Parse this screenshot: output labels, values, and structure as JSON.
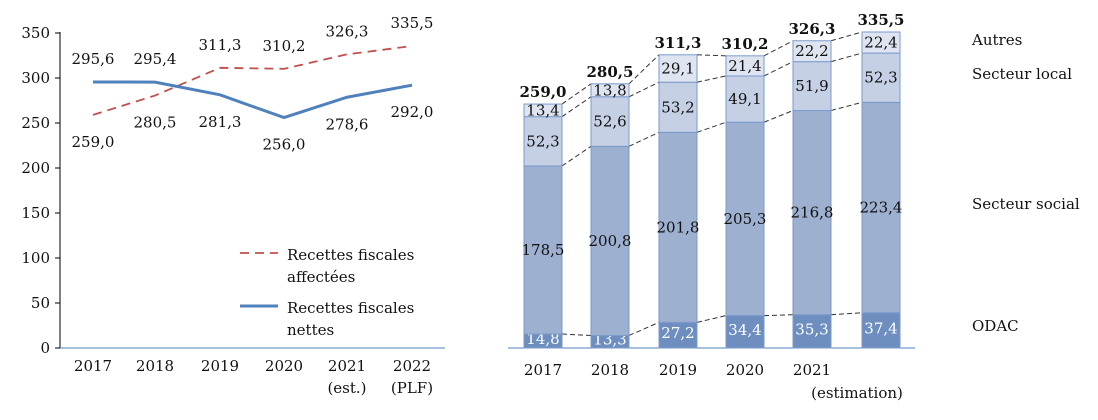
{
  "chart_data": [
    {
      "type": "line",
      "categories": [
        "2017",
        "2018",
        "2019",
        "2020",
        "2021",
        "2022"
      ],
      "category_sublabels": [
        "",
        "",
        "",
        "",
        "(est.)",
        "(PLF)"
      ],
      "ylim": [
        0,
        350
      ],
      "yticks": [
        0,
        50,
        100,
        150,
        200,
        250,
        300,
        350
      ],
      "series": [
        {
          "name": "Recettes fiscales affectées",
          "legend_line2": "affectées",
          "legend_line1": "Recettes fiscales",
          "style": "dashed",
          "color": "#c0504d",
          "values": [
            259.0,
            280.5,
            311.3,
            310.2,
            326.3,
            335.5
          ],
          "labels": [
            "259,0",
            "280,5",
            "311,3",
            "310,2",
            "326,3",
            "335,5"
          ]
        },
        {
          "name": "Recettes fiscales nettes",
          "legend_line1": "Recettes fiscales",
          "legend_line2": "nettes",
          "style": "solid",
          "color": "#4f81bd",
          "values": [
            295.6,
            295.4,
            281.3,
            256.0,
            278.6,
            292.0
          ],
          "labels": [
            "295,6",
            "295,4",
            "281,3",
            "256,0",
            "278,6",
            "292,0"
          ]
        }
      ],
      "legend": "bottom-right"
    },
    {
      "type": "bar",
      "stacked": true,
      "categories": [
        "2017",
        "2018",
        "2019",
        "2020",
        "2021",
        ""
      ],
      "category_sublabels": [
        "",
        "",
        "",
        "",
        "(estimation)",
        ""
      ],
      "totals": [
        259.0,
        280.5,
        311.3,
        310.2,
        326.3,
        335.5
      ],
      "total_labels": [
        "259,0",
        "280,5",
        "311,3",
        "310,2",
        "326,3",
        "335,5"
      ],
      "series": [
        {
          "name": "ODAC",
          "color": "#6d8ebf",
          "values": [
            14.8,
            13.3,
            27.2,
            34.4,
            35.3,
            37.4
          ],
          "labels": [
            "14,8",
            "13,3",
            "27,2",
            "34,4",
            "35,3",
            "37,4"
          ]
        },
        {
          "name": "Secteur social",
          "color": "#9db0cf",
          "values": [
            178.5,
            200.8,
            201.8,
            205.3,
            216.8,
            223.4
          ],
          "labels": [
            "178,5",
            "200,8",
            "201,8",
            "205,3",
            "216,8",
            "223,4"
          ]
        },
        {
          "name": "Secteur local",
          "color": "#c5d0e4",
          "values": [
            52.3,
            52.6,
            53.2,
            49.1,
            51.9,
            52.3
          ],
          "labels": [
            "52,3",
            "52,6",
            "53,2",
            "49,1",
            "51,9",
            "52,3"
          ]
        },
        {
          "name": "Autres",
          "color": "#dfe5f0",
          "values": [
            13.4,
            13.8,
            29.1,
            21.4,
            22.2,
            22.4
          ],
          "labels": [
            "13,4",
            "13,8",
            "29,1",
            "21,4",
            "22,2",
            "22,4"
          ]
        }
      ],
      "legend": "right (inline series labels)"
    }
  ]
}
